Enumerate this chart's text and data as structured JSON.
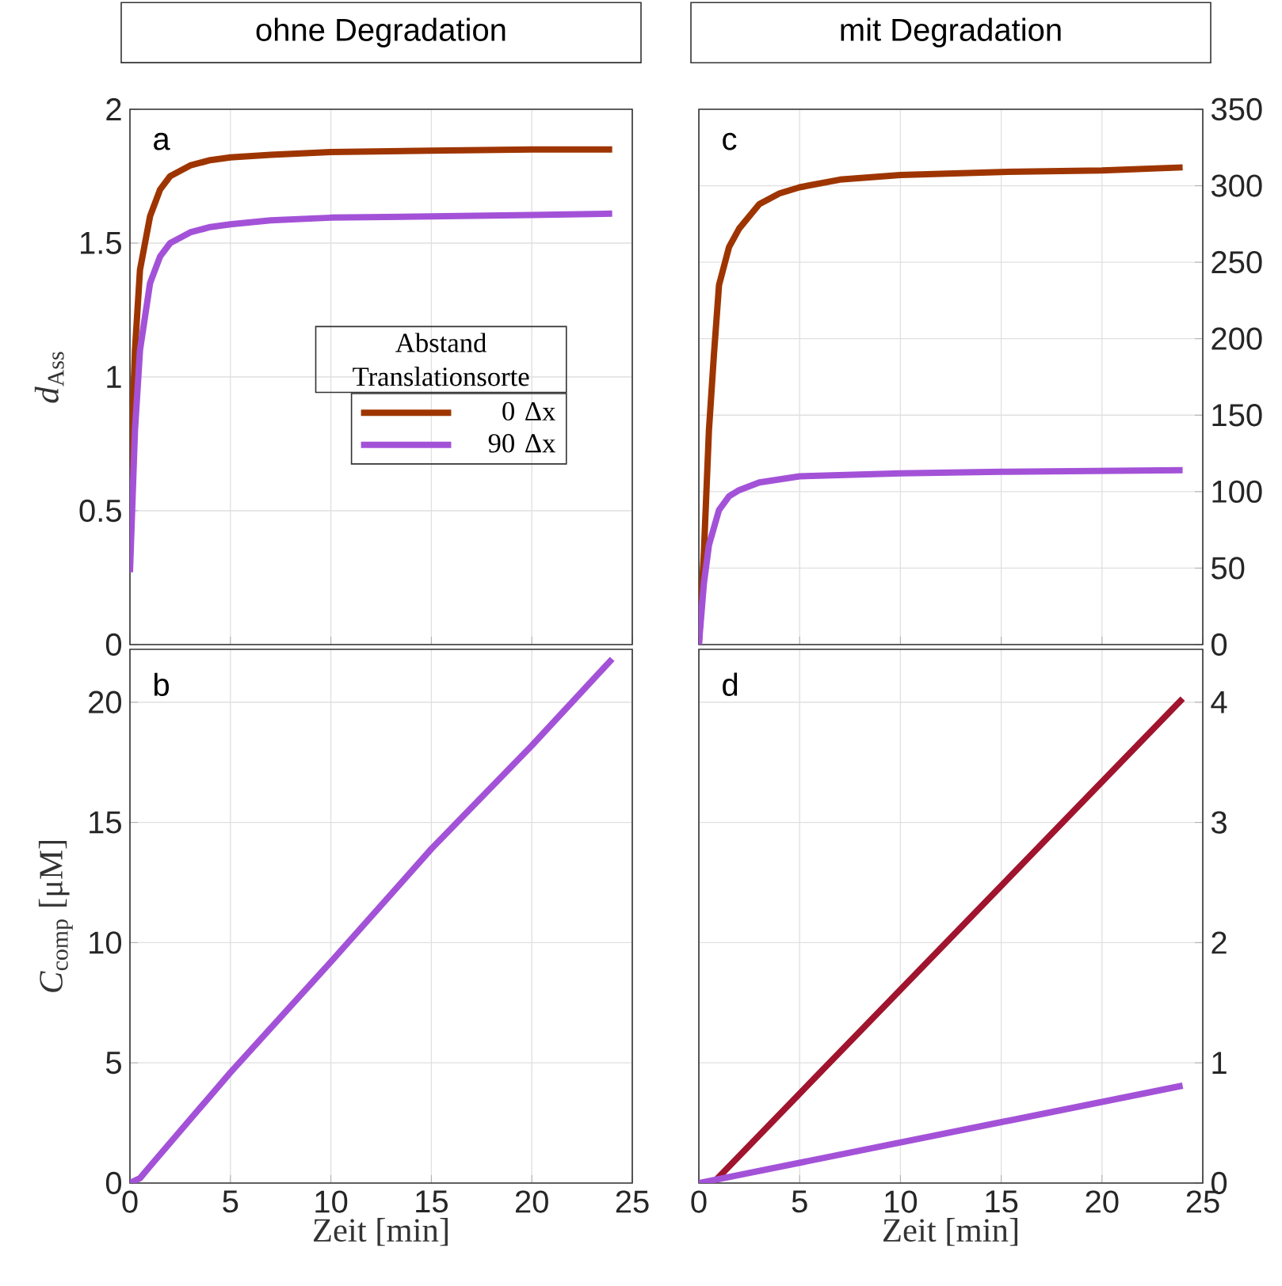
{
  "chart_data": [
    {
      "type": "line",
      "title": "ohne Degradation",
      "ylabel": "*d*$_{Ass}$",
      "annotations": [
        "a"
      ],
      "legend": "right",
      "legend_title": "Abstand Translationsorte",
      "grid": true,
      "tick_labels": "y",
      "xlim": [
        0,
        25
      ],
      "xticks": [
        0,
        5,
        10,
        15,
        20,
        25
      ],
      "ylim": [
        0,
        2
      ],
      "yticks": [
        0,
        0.5,
        1,
        1.5,
        2
      ],
      "series": [
        {
          "name": "0 Δx",
          "color": "#9e3500",
          "x": [
            0,
            0.25,
            0.5,
            1,
            1.5,
            2,
            3,
            4,
            5,
            7,
            10,
            15,
            20,
            24
          ],
          "values": [
            0.56,
            1.1,
            1.4,
            1.6,
            1.7,
            1.75,
            1.79,
            1.81,
            1.82,
            1.83,
            1.84,
            1.845,
            1.85,
            1.85
          ]
        },
        {
          "name": "90 Δx",
          "color": "#a352d8",
          "x": [
            0,
            0.25,
            0.5,
            1,
            1.5,
            2,
            3,
            4,
            5,
            7,
            10,
            15,
            20,
            24
          ],
          "values": [
            0.27,
            0.8,
            1.1,
            1.35,
            1.45,
            1.5,
            1.54,
            1.56,
            1.57,
            1.585,
            1.595,
            1.6,
            1.605,
            1.61
          ]
        }
      ]
    },
    {
      "type": "line",
      "title": "mit Degradation",
      "annotations": [
        "c"
      ],
      "grid": true,
      "tick_labels": "y",
      "xlim": [
        0,
        25
      ],
      "xticks": [
        0,
        5,
        10,
        15,
        20,
        25
      ],
      "ylim": [
        0,
        350
      ],
      "yticks": [
        0,
        50,
        100,
        150,
        200,
        250,
        300,
        350
      ],
      "series": [
        {
          "color": "#9e3500",
          "x": [
            0,
            0.25,
            0.5,
            0.75,
            1,
            1.5,
            2,
            3,
            4,
            5,
            7,
            10,
            15,
            20,
            24
          ],
          "values": [
            0,
            60,
            140,
            190,
            235,
            260,
            272,
            288,
            295,
            299,
            304,
            307,
            309,
            310,
            312
          ]
        },
        {
          "color": "#a352d8",
          "x": [
            0,
            0.25,
            0.5,
            1,
            1.5,
            2,
            3,
            5,
            10,
            15,
            24
          ],
          "values": [
            0,
            40,
            65,
            88,
            97,
            101,
            106,
            110,
            112,
            113,
            114
          ]
        }
      ]
    },
    {
      "type": "line",
      "xlabel": "Zeit [min]",
      "ylabel": "*C*$_{comp}$ [μM]",
      "annotations": [
        "b"
      ],
      "grid": true,
      "xlim": [
        0,
        25
      ],
      "xticks": [
        0,
        5,
        10,
        15,
        20,
        25
      ],
      "ylim": [
        0,
        22.2
      ],
      "yticks": [
        0,
        5,
        10,
        15,
        20
      ],
      "series": [
        {
          "color": "#a352d8",
          "x": [
            0,
            0.5,
            1,
            5,
            10,
            15,
            20,
            24
          ],
          "values": [
            0,
            0.2,
            0.7,
            4.6,
            9.2,
            13.9,
            18.2,
            21.8
          ]
        }
      ]
    },
    {
      "type": "line",
      "xlabel": "Zeit [min]",
      "annotations": [
        "d"
      ],
      "grid": true,
      "xlim": [
        0,
        25
      ],
      "xticks": [
        0,
        5,
        10,
        15,
        20,
        25
      ],
      "ylim": [
        0,
        4.44
      ],
      "yticks": [
        0,
        1,
        2,
        3,
        4
      ],
      "series": [
        {
          "color": "#a0142e",
          "x": [
            0,
            0.7,
            24
          ],
          "values": [
            0,
            0,
            4.03
          ]
        },
        {
          "color": "#a352d8",
          "x": [
            0,
            24
          ],
          "values": [
            0,
            0.81
          ]
        }
      ]
    }
  ]
}
